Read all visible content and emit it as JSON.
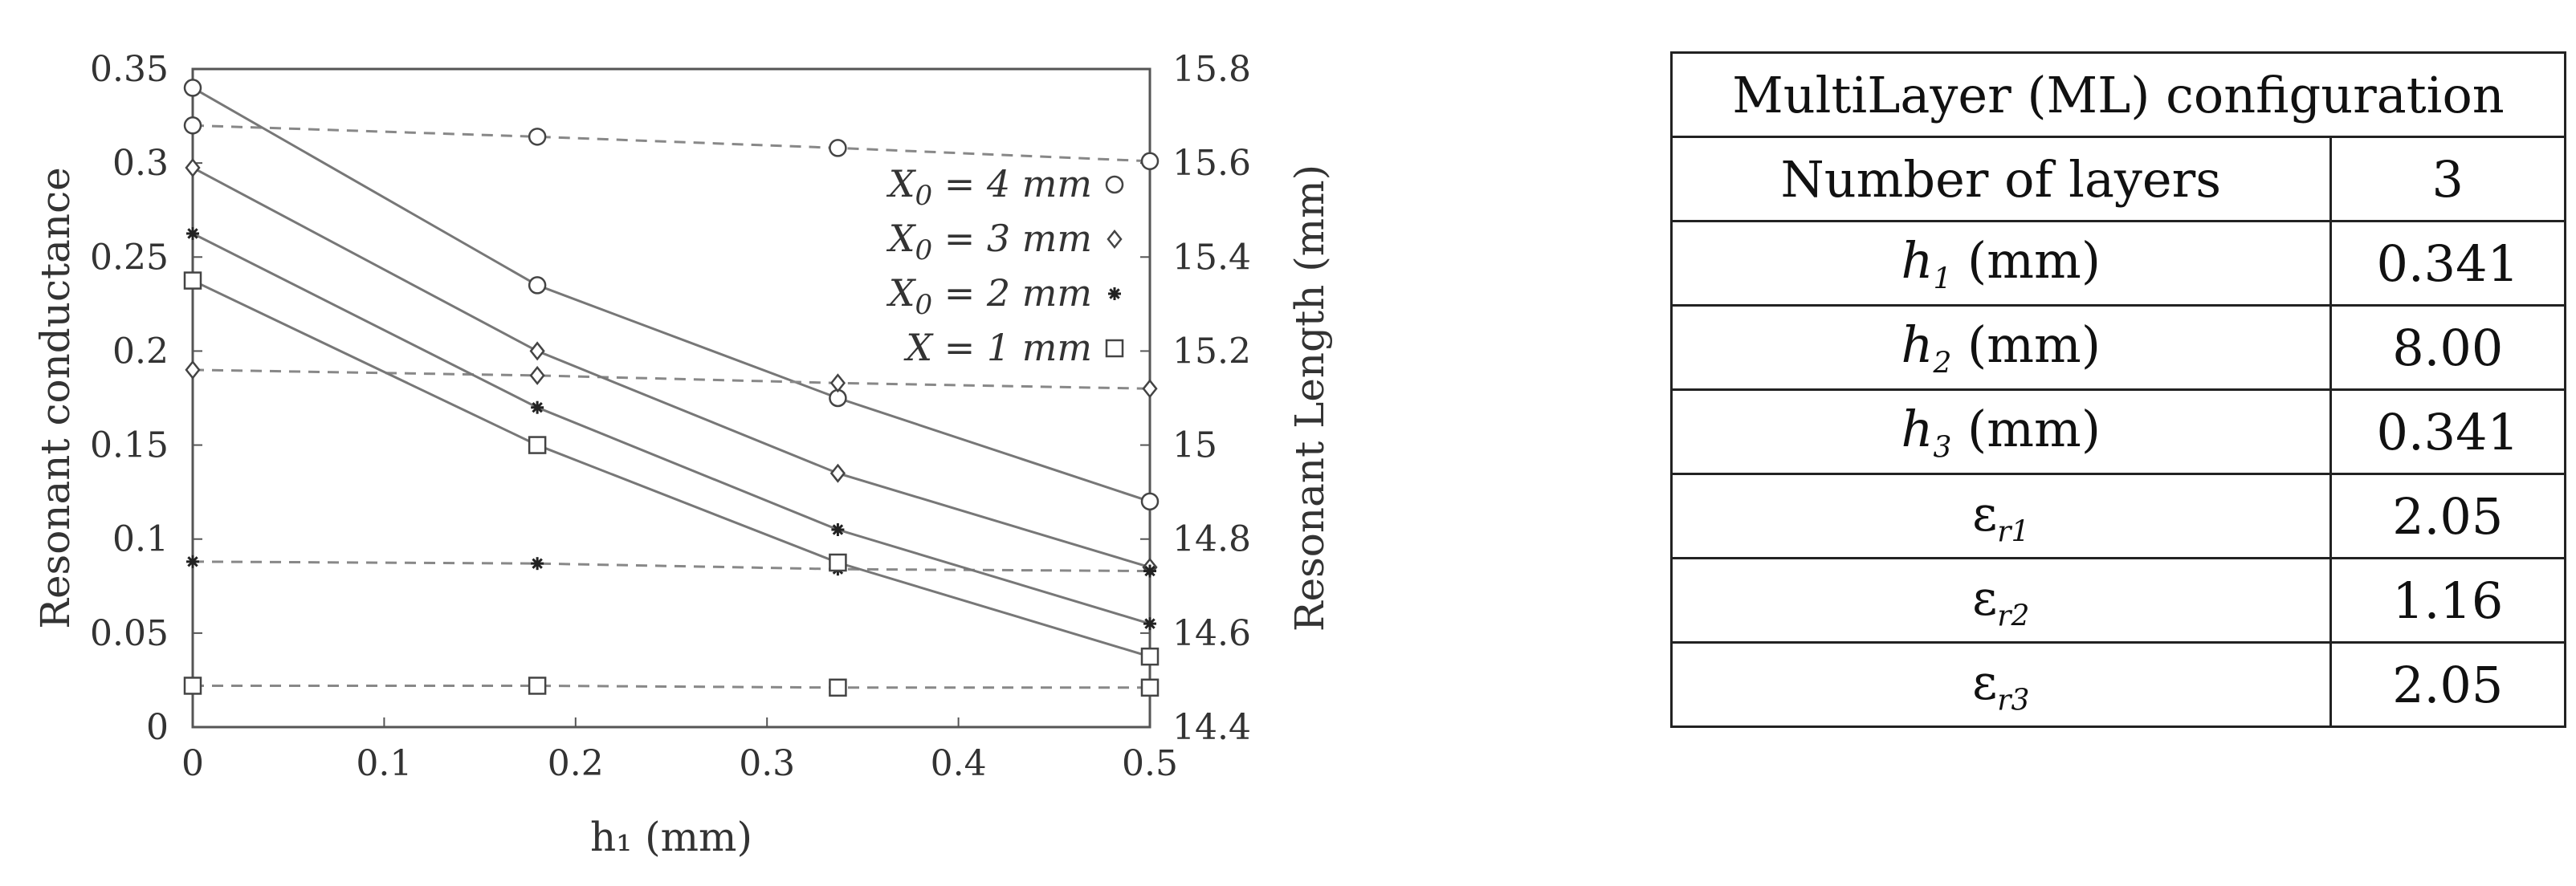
{
  "chart_data": {
    "type": "line",
    "xlabel": "h₁ (mm)",
    "ylabel_left": "Resonant conductance",
    "ylabel_right": "Resonant Length (mm)",
    "xlim": [
      0,
      0.5
    ],
    "ylim_left": [
      0,
      0.35
    ],
    "ylim_right": [
      14.4,
      15.8
    ],
    "x_ticks": [
      "0",
      "0.1",
      "0.2",
      "0.3",
      "0.4",
      "0.5"
    ],
    "y_ticks_left": [
      "0",
      "0.05",
      "0.1",
      "0.15",
      "0.2",
      "0.25",
      "0.3",
      "0.35"
    ],
    "y_ticks_right": [
      "14.4",
      "14.6",
      "14.8",
      "15",
      "15.2",
      "15.4",
      "15.6",
      "15.8"
    ],
    "x": [
      0,
      0.18,
      0.337,
      0.5
    ],
    "legend_placement": "upper-right",
    "series": [
      {
        "name": "X0 = 4 mm",
        "legend_main": "X",
        "legend_sub": "0",
        "legend_rest": " = 4 mm",
        "marker": "circle",
        "conductance": [
          0.32,
          0.314,
          0.308,
          0.301
        ],
        "length": [
          15.76,
          15.34,
          15.1,
          14.88
        ]
      },
      {
        "name": "X0 = 3 mm",
        "legend_main": "X",
        "legend_sub": "0",
        "legend_rest": " = 3 mm",
        "marker": "diamond",
        "conductance": [
          0.19,
          0.187,
          0.183,
          0.18
        ],
        "length": [
          15.59,
          15.2,
          14.94,
          14.74
        ]
      },
      {
        "name": "X0 = 2 mm",
        "legend_main": "X",
        "legend_sub": "0",
        "legend_rest": " = 2 mm",
        "marker": "star",
        "conductance": [
          0.088,
          0.087,
          0.084,
          0.083
        ],
        "length": [
          15.45,
          15.08,
          14.82,
          14.62
        ]
      },
      {
        "name": "X  = 1 mm",
        "legend_main": "X",
        "legend_sub": "",
        "legend_rest": "  = 1 mm",
        "marker": "square",
        "conductance": [
          0.022,
          0.022,
          0.021,
          0.021
        ],
        "length": [
          15.35,
          15.0,
          14.75,
          14.55
        ]
      }
    ]
  },
  "table": {
    "title": "MultiLayer (ML) configuration",
    "rows": [
      {
        "label": "Number of layers",
        "value": "3"
      },
      {
        "symbol": "h",
        "sub": "1",
        "unit": " (mm)",
        "value": "0.341"
      },
      {
        "symbol": "h",
        "sub": "2",
        "unit": " (mm)",
        "value": "8.00"
      },
      {
        "symbol": "h",
        "sub": "3",
        "unit": " (mm)",
        "value": "0.341"
      },
      {
        "symbol": "ε",
        "sub": "r1",
        "value": "2.05"
      },
      {
        "symbol": "ε",
        "sub": "r2",
        "value": "1.16"
      },
      {
        "symbol": "ε",
        "sub": "r3",
        "value": "2.05"
      }
    ]
  }
}
